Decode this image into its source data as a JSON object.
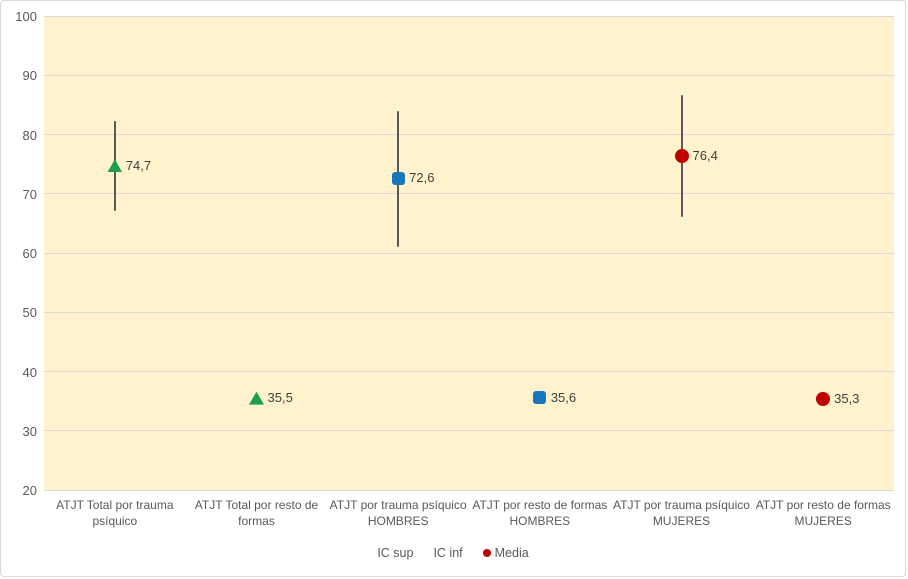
{
  "chart_data": {
    "type": "scatter",
    "description": "Dot plot of means with confidence-interval error bars",
    "ylim": [
      20,
      100
    ],
    "yticks": [
      100,
      90,
      80,
      70,
      60,
      50,
      40,
      30,
      20
    ],
    "grid": true,
    "legend_position": "bottom",
    "plot_background": "#FFF2CC",
    "categories": [
      "ATJT Total por trauma psíquico",
      "ATJT Total por resto de formas",
      "ATJT por trauma psíquico HOMBRES",
      "ATJT por resto de formas HOMBRES",
      "ATJT por trauma psíquico MUJERES",
      "ATJT por resto de formas MUJERES"
    ],
    "points": [
      {
        "category": "ATJT Total por trauma psíquico",
        "media": 74.7,
        "label": "74,7",
        "ic_sup": 82.2,
        "ic_inf": 67.1,
        "marker": "triangle",
        "color": "#1CA04A"
      },
      {
        "category": "ATJT Total por resto de formas",
        "media": 35.5,
        "label": "35,5",
        "ic_sup": null,
        "ic_inf": null,
        "marker": "triangle",
        "color": "#1CA04A"
      },
      {
        "category": "ATJT por trauma psíquico HOMBRES",
        "media": 72.6,
        "label": "72,6",
        "ic_sup": 84.0,
        "ic_inf": 61.0,
        "marker": "square",
        "color": "#1776BC"
      },
      {
        "category": "ATJT por resto de formas HOMBRES",
        "media": 35.6,
        "label": "35,6",
        "ic_sup": null,
        "ic_inf": null,
        "marker": "square",
        "color": "#1776BC"
      },
      {
        "category": "ATJT por trauma psíquico MUJERES",
        "media": 76.4,
        "label": "76,4",
        "ic_sup": 86.6,
        "ic_inf": 66.0,
        "marker": "circle",
        "color": "#C00000"
      },
      {
        "category": "ATJT por resto de formas MUJERES",
        "media": 35.3,
        "label": "35,3",
        "ic_sup": null,
        "ic_inf": null,
        "marker": "circle",
        "color": "#C00000"
      }
    ],
    "legend": [
      {
        "label": "IC sup",
        "marker": "none"
      },
      {
        "label": "IC inf",
        "marker": "none"
      },
      {
        "label": "Media",
        "marker": "circle",
        "color": "#C00000"
      }
    ]
  },
  "colors": {
    "plot_bg": "#FFF2CC",
    "gridline": "#DCDAD3",
    "error_bar": "#595959",
    "axis_text": "#595959",
    "category_text": "#595959",
    "legend_text": "#595959",
    "data_label_text": "#404040",
    "frame_border": "#D9D9D9"
  }
}
